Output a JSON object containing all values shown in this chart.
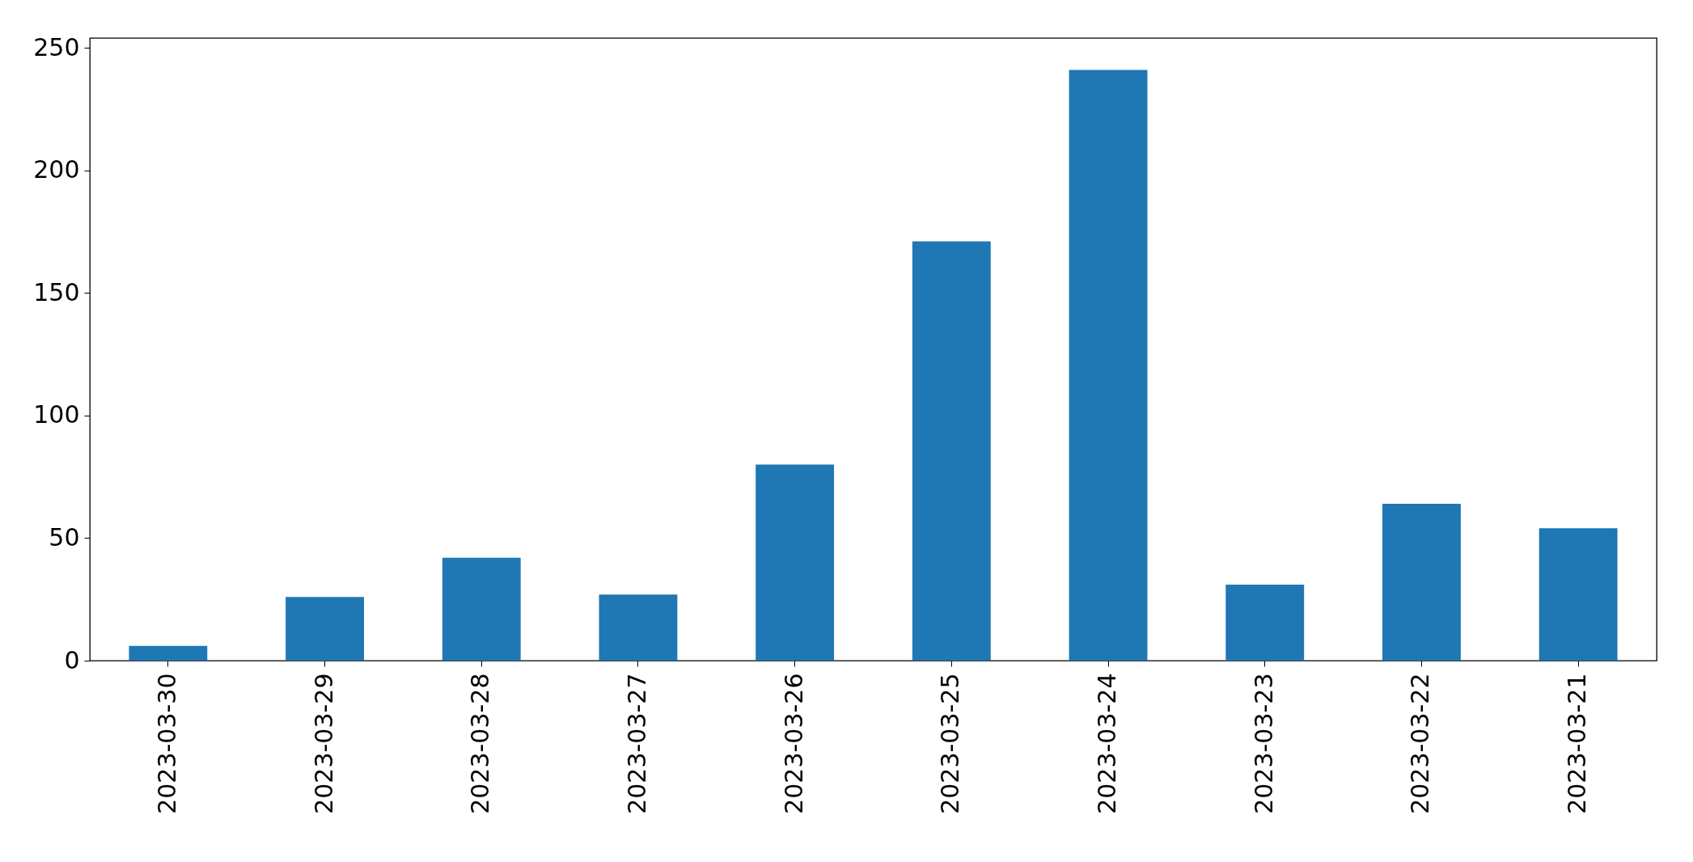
{
  "chart_data": {
    "type": "bar",
    "categories": [
      "2023-03-30",
      "2023-03-29",
      "2023-03-28",
      "2023-03-27",
      "2023-03-26",
      "2023-03-25",
      "2023-03-24",
      "2023-03-23",
      "2023-03-22",
      "2023-03-21"
    ],
    "values": [
      6,
      26,
      42,
      27,
      80,
      171,
      241,
      31,
      64,
      54
    ],
    "color": "#1f77b4",
    "ylim": [
      0,
      254
    ],
    "yticks": [
      0,
      50,
      100,
      150,
      200,
      250
    ],
    "grid": false
  }
}
